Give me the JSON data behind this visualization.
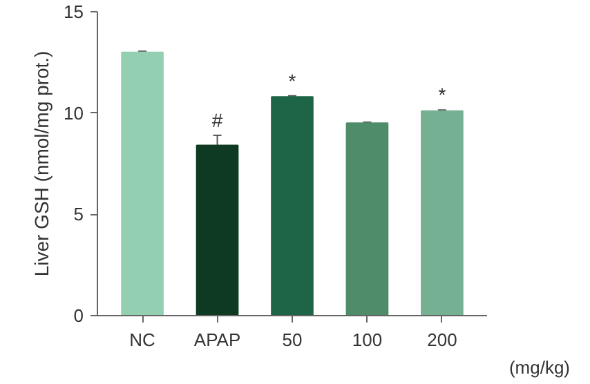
{
  "chart_data": {
    "type": "bar",
    "ylabel": "Liver GSH (nmol/mg prot.)",
    "categories": [
      "NC",
      "APAP",
      "50",
      "100",
      "200"
    ],
    "values": [
      13.0,
      8.4,
      10.8,
      9.5,
      10.1
    ],
    "errors": [
      0.05,
      0.5,
      0.05,
      0.05,
      0.05
    ],
    "colors": [
      "#93cfb1",
      "#0d3a20",
      "#1e6446",
      "#4f8c6a",
      "#76b093"
    ],
    "ylim": [
      0,
      15
    ],
    "yticks": [
      0,
      5,
      10,
      15
    ],
    "grid": false,
    "annotations": [
      {
        "text": "#",
        "x": "APAP",
        "y": 8.9
      },
      {
        "text": "*",
        "x": "50",
        "y": 10.85
      },
      {
        "text": "*",
        "x": "200",
        "y": 10.15
      },
      "(mg/kg)"
    ]
  }
}
